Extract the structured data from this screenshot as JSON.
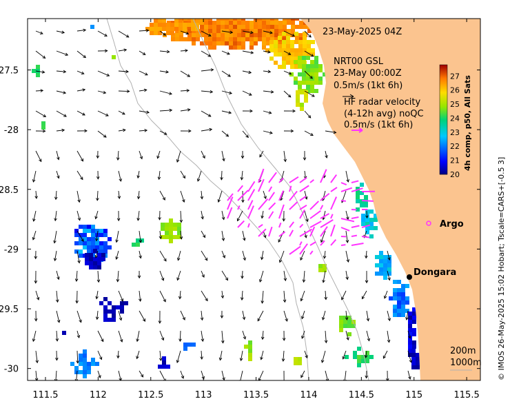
{
  "map": {
    "timestamp": "23-May-2025 04Z",
    "x_ticks": [
      {
        "value": 111.5,
        "label": "111.5"
      },
      {
        "value": 112,
        "label": "112"
      },
      {
        "value": 112.5,
        "label": "112.5"
      },
      {
        "value": 113,
        "label": "113"
      },
      {
        "value": 113.5,
        "label": "113.5"
      },
      {
        "value": 114,
        "label": "114"
      },
      {
        "value": 114.5,
        "label": "114.5"
      },
      {
        "value": 115,
        "label": "115"
      },
      {
        "value": 115.5,
        "label": "115.5"
      }
    ],
    "y_ticks": [
      {
        "value": -27.5,
        "label": "-27.5"
      },
      {
        "value": -28,
        "label": "-28"
      },
      {
        "value": -28.5,
        "label": "-28.5"
      },
      {
        "value": -29,
        "label": "-29"
      },
      {
        "value": -29.5,
        "label": "-29.5"
      },
      {
        "value": -30,
        "label": "-30"
      }
    ],
    "xlim": [
      111.33,
      115.63
    ],
    "ylim": [
      -30.1,
      -27.07
    ],
    "model_legend": {
      "line1": "NRT00 GSL",
      "line2": "23-May 00:00Z",
      "line3": "0.5m/s (1kt 6h)"
    },
    "radar_legend": {
      "line1": "HF radar velocity",
      "line2": "(4-12h avg) noQC",
      "line3": "0.5m/s (1kt 6h)"
    },
    "places": [
      {
        "name": "Dongara",
        "lon": 114.93,
        "lat": -29.25
      },
      {
        "name": "Argo",
        "lon": 115.12,
        "lat": -28.84
      }
    ],
    "isobaths": {
      "label_200": "200m",
      "label_1000": "1000m"
    },
    "colorbar": {
      "title": "4h comp, p50, All Sats",
      "min": 20,
      "max": 27.8,
      "labels": [
        "27",
        "26",
        "25",
        "24",
        "23",
        "22",
        "21",
        "20"
      ]
    },
    "credit": "© IMOS 26-May-2025 15:02 Hobart; Tscale=CARS+[-0.5 3]",
    "colors": {
      "land": "#fbc48f",
      "radar": "#ff33ff",
      "arrow": "#000000",
      "isobath": "#b0b0b0"
    }
  }
}
